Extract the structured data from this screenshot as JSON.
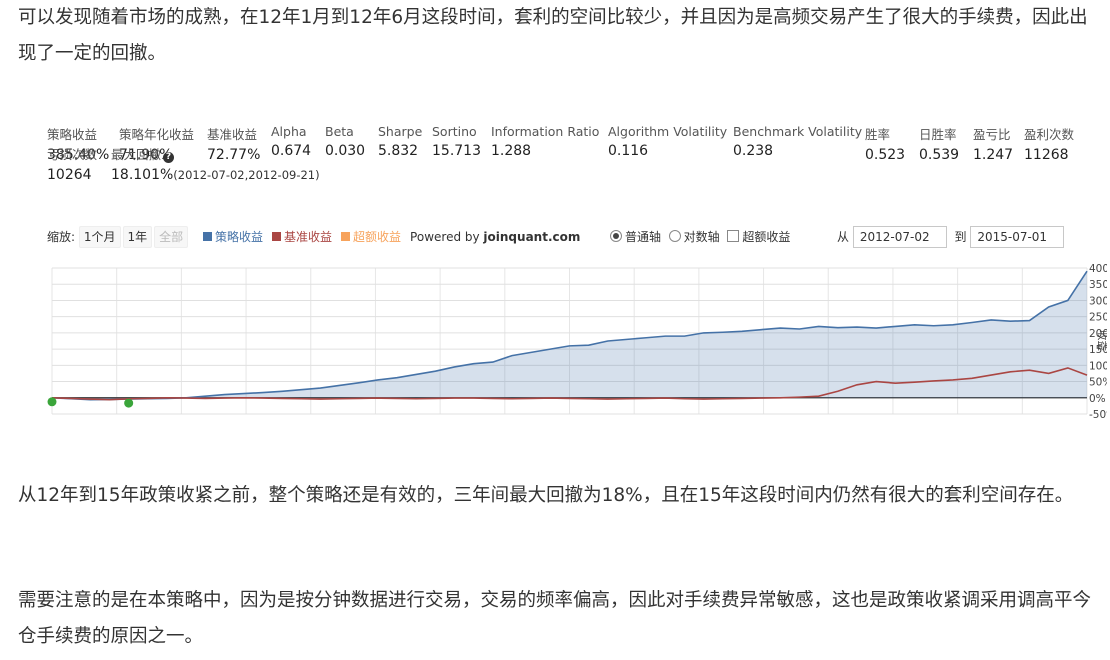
{
  "article": {
    "p1": "可以发现随着市场的成熟，在12年1月到12年6月这段时间，套利的空间比较少，并且因为是高频交易产生了很大的手续费，因此出现了一定的回撤。",
    "p2": "从12年到15年政策收紧之前，整个策略还是有效的，三年间最大回撤为18%，且在15年这段时间内仍然有很大的套利空间存在。",
    "p3": "需要注意的是在本策略中，因为是按分钟数据进行交易，交易的频率偏高，因此对手续费异常敏感，这也是政策收紧调采用调高平今仓手续费的原因之一。"
  },
  "stats": [
    {
      "label": "策略收益",
      "value": "385.40%"
    },
    {
      "label": "策略年化收益",
      "value": "71.90%"
    },
    {
      "label": "基准收益",
      "value": "72.77%"
    },
    {
      "label": "Alpha",
      "value": "0.674"
    },
    {
      "label": "Beta",
      "value": "0.030"
    },
    {
      "label": "Sharpe",
      "value": "5.832"
    },
    {
      "label": "Sortino",
      "value": "15.713"
    },
    {
      "label": "Information Ratio",
      "value": "1.288"
    },
    {
      "label": "Algorithm Volatility",
      "value": "0.116"
    },
    {
      "label": "Benchmark Volatility",
      "value": "0.238"
    },
    {
      "label": "胜率",
      "value": "0.523"
    },
    {
      "label": "日胜率",
      "value": "0.539"
    },
    {
      "label": "盈亏比",
      "value": "1.247"
    },
    {
      "label": "盈利次数",
      "value": "11268"
    }
  ],
  "stats_row2": {
    "loss_label": "亏损次数",
    "loss_value": "10264",
    "drawdown_label": "最大回撤",
    "drawdown_value": "18.101%",
    "drawdown_range": "(2012-07-02,2012-09-21)"
  },
  "toolbar": {
    "zoom_label": "缩放:",
    "zoom_buttons": [
      "1个月",
      "1年",
      "全部"
    ],
    "legend": [
      {
        "label": "策略收益",
        "color": "#4572a7"
      },
      {
        "label": "基准收益",
        "color": "#aa4643"
      },
      {
        "label": "超额收益",
        "color": "#f7a35c"
      }
    ],
    "powered_prefix": "Powered by ",
    "powered_brand": "joinquant.com",
    "axis_normal": "普通轴",
    "axis_log": "对数轴",
    "excess_toggle": "超额收益",
    "from_label": "从",
    "from_date": "2012-07-02",
    "to_label": "到",
    "to_date": "2015-07-01"
  },
  "chart_data": {
    "type": "line",
    "y_axis_label": "收益",
    "yticks": [
      "400%",
      "350%",
      "300%",
      "250%",
      "200%",
      "150%",
      "100%",
      "50%",
      "0%",
      "-50%"
    ],
    "ylim": [
      -50,
      400
    ],
    "grid": true,
    "series": [
      {
        "name": "策略收益",
        "color": "#4572a7",
        "values": [
          0,
          -3,
          -6,
          -5,
          -4,
          -3,
          -2,
          0,
          5,
          10,
          13,
          16,
          20,
          25,
          30,
          38,
          46,
          55,
          62,
          72,
          82,
          95,
          105,
          110,
          130,
          140,
          150,
          160,
          162,
          175,
          180,
          185,
          190,
          190,
          200,
          202,
          205,
          210,
          215,
          212,
          220,
          216,
          218,
          215,
          220,
          225,
          222,
          225,
          232,
          240,
          236,
          238,
          280,
          300,
          390
        ]
      },
      {
        "name": "基准收益",
        "color": "#aa4643",
        "values": [
          0,
          -2,
          -4,
          -6,
          -3,
          -2,
          0,
          -1,
          -2,
          -1,
          0,
          -1,
          -2,
          -3,
          -4,
          -3,
          -2,
          -1,
          -2,
          -3,
          -2,
          -1,
          -1,
          -2,
          -3,
          -2,
          -1,
          -2,
          -3,
          -4,
          -3,
          -2,
          -1,
          -3,
          -4,
          -3,
          -2,
          -1,
          0,
          2,
          5,
          20,
          40,
          50,
          45,
          48,
          52,
          55,
          60,
          70,
          80,
          85,
          75,
          92,
          70
        ]
      }
    ],
    "markers": [
      {
        "series": 0,
        "index": 0
      },
      {
        "series": 0,
        "index": 4
      }
    ]
  }
}
